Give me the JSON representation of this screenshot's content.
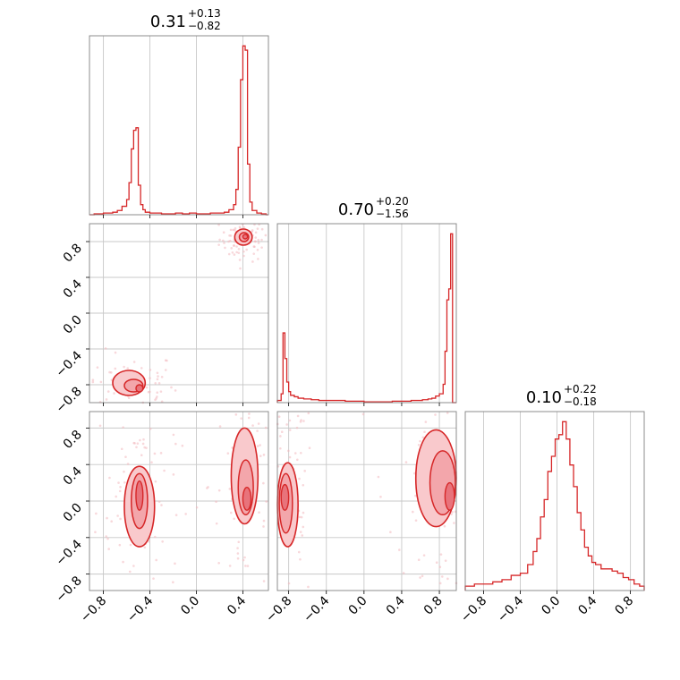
{
  "chart_data": {
    "type": "scatter",
    "kind": "corner-plot",
    "color": "#d62728",
    "grid": true,
    "titles": [
      {
        "value": "0.31",
        "plus": "+0.13",
        "minus": "−0.82"
      },
      {
        "value": "0.70",
        "plus": "+0.20",
        "minus": "−1.56"
      },
      {
        "value": "0.10",
        "plus": "+0.22",
        "minus": "−0.18"
      }
    ],
    "xlim": [
      [
        -0.92,
        0.62
      ],
      [
        -0.92,
        0.98
      ],
      [
        -1.0,
        0.95
      ]
    ],
    "ylim_pairs": [
      [
        -1.0,
        1.0
      ],
      [
        -0.98,
        0.98
      ]
    ],
    "axis_ticks": {
      "param1": {
        "values": [
          -0.8,
          -0.4,
          0.0,
          0.4
        ],
        "labels": [
          "−0.8",
          "−0.4",
          "0.0",
          "0.4"
        ]
      },
      "param2": {
        "values": [
          -0.8,
          -0.4,
          0.0,
          0.4,
          0.8
        ],
        "labels": [
          "−0.8",
          "−0.4",
          "0.0",
          "0.4",
          "0.8"
        ]
      },
      "param3": {
        "values": [
          -0.8,
          -0.4,
          0.0,
          0.4,
          0.8
        ],
        "labels": [
          "−0.8",
          "−0.4",
          "0.0",
          "0.4",
          "0.8"
        ]
      }
    },
    "histograms": [
      {
        "param": 1,
        "x": [
          -0.92,
          -0.88,
          -0.84,
          -0.8,
          -0.76,
          -0.72,
          -0.68,
          -0.64,
          -0.6,
          -0.58,
          -0.56,
          -0.54,
          -0.52,
          -0.5,
          -0.48,
          -0.46,
          -0.44,
          -0.4,
          -0.36,
          -0.3,
          -0.24,
          -0.18,
          -0.12,
          -0.06,
          0.0,
          0.06,
          0.12,
          0.18,
          0.24,
          0.28,
          0.32,
          0.34,
          0.36,
          0.38,
          0.4,
          0.42,
          0.44,
          0.46,
          0.48,
          0.52,
          0.56,
          0.6
        ],
        "counts": [
          0,
          1,
          1,
          2,
          2,
          3,
          5,
          10,
          18,
          38,
          78,
          100,
          103,
          35,
          12,
          6,
          3,
          2,
          2,
          1,
          1,
          2,
          1,
          2,
          1,
          1,
          2,
          2,
          3,
          6,
          12,
          30,
          80,
          160,
          200,
          195,
          60,
          15,
          5,
          2,
          1,
          0
        ]
      },
      {
        "param": 2,
        "x": [
          -0.92,
          -0.88,
          -0.86,
          -0.84,
          -0.82,
          -0.8,
          -0.78,
          -0.74,
          -0.7,
          -0.64,
          -0.56,
          -0.48,
          -0.4,
          -0.3,
          -0.2,
          -0.1,
          0.0,
          0.1,
          0.2,
          0.3,
          0.4,
          0.5,
          0.56,
          0.62,
          0.68,
          0.72,
          0.76,
          0.8,
          0.84,
          0.86,
          0.88,
          0.9,
          0.92,
          0.94,
          0.96,
          0.98
        ],
        "counts": [
          3,
          12,
          95,
          60,
          28,
          15,
          10,
          8,
          6,
          5,
          4,
          3,
          3,
          3,
          2,
          2,
          1,
          1,
          1,
          2,
          2,
          3,
          3,
          4,
          5,
          6,
          9,
          12,
          25,
          70,
          140,
          155,
          230,
          0,
          0,
          0
        ]
      },
      {
        "param": 3,
        "x": [
          -1.0,
          -0.9,
          -0.8,
          -0.7,
          -0.6,
          -0.5,
          -0.4,
          -0.32,
          -0.26,
          -0.22,
          -0.18,
          -0.14,
          -0.1,
          -0.06,
          -0.02,
          0.02,
          0.06,
          0.1,
          0.14,
          0.18,
          0.22,
          0.26,
          0.3,
          0.34,
          0.38,
          0.42,
          0.48,
          0.54,
          0.6,
          0.66,
          0.72,
          0.78,
          0.84,
          0.9,
          0.95
        ],
        "counts": [
          2,
          3,
          3,
          4,
          5,
          7,
          8,
          12,
          18,
          24,
          34,
          42,
          55,
          62,
          70,
          72,
          78,
          70,
          58,
          48,
          36,
          28,
          20,
          16,
          13,
          12,
          10,
          10,
          9,
          8,
          6,
          5,
          3,
          2,
          2
        ]
      }
    ],
    "contours": [
      {
        "pair": "x1-x2",
        "regions": [
          {
            "center": [
              0.41,
              0.83
            ],
            "blobs": [
              [
                0.33,
                0.76,
                0.48,
                0.94
              ],
              [
                0.37,
                0.8,
                0.45,
                0.9
              ],
              [
                0.4,
                0.83,
                0.44,
                0.88
              ]
            ]
          },
          {
            "center": [
              -0.55,
              -0.82
            ],
            "blobs": [
              [
                -0.72,
                -0.92,
                -0.44,
                -0.64
              ],
              [
                -0.62,
                -0.88,
                -0.46,
                -0.74
              ],
              [
                -0.52,
                -0.88,
                -0.46,
                -0.8
              ]
            ]
          }
        ]
      },
      {
        "pair": "x1-x3",
        "regions": [
          {
            "center": [
              -0.5,
              0.1
            ],
            "blobs": [
              [
                -0.62,
                -0.5,
                -0.36,
                0.38
              ],
              [
                -0.56,
                -0.3,
                -0.42,
                0.3
              ],
              [
                -0.52,
                -0.1,
                -0.46,
                0.22
              ]
            ]
          },
          {
            "center": [
              0.43,
              0.2
            ],
            "blobs": [
              [
                0.3,
                -0.25,
                0.53,
                0.8
              ],
              [
                0.36,
                -0.15,
                0.49,
                0.45
              ],
              [
                0.4,
                -0.1,
                0.47,
                0.15
              ]
            ]
          }
        ]
      },
      {
        "pair": "x2-x3",
        "regions": [
          {
            "center": [
              -0.82,
              0.05
            ],
            "blobs": [
              [
                -0.92,
                -0.5,
                -0.7,
                0.42
              ],
              [
                -0.9,
                -0.35,
                -0.76,
                0.3
              ],
              [
                -0.88,
                -0.1,
                -0.8,
                0.18
              ]
            ]
          },
          {
            "center": [
              0.85,
              0.2
            ],
            "blobs": [
              [
                0.55,
                -0.28,
                0.98,
                0.78
              ],
              [
                0.7,
                -0.15,
                0.97,
                0.55
              ],
              [
                0.86,
                -0.1,
                0.96,
                0.2
              ]
            ]
          }
        ]
      }
    ]
  }
}
